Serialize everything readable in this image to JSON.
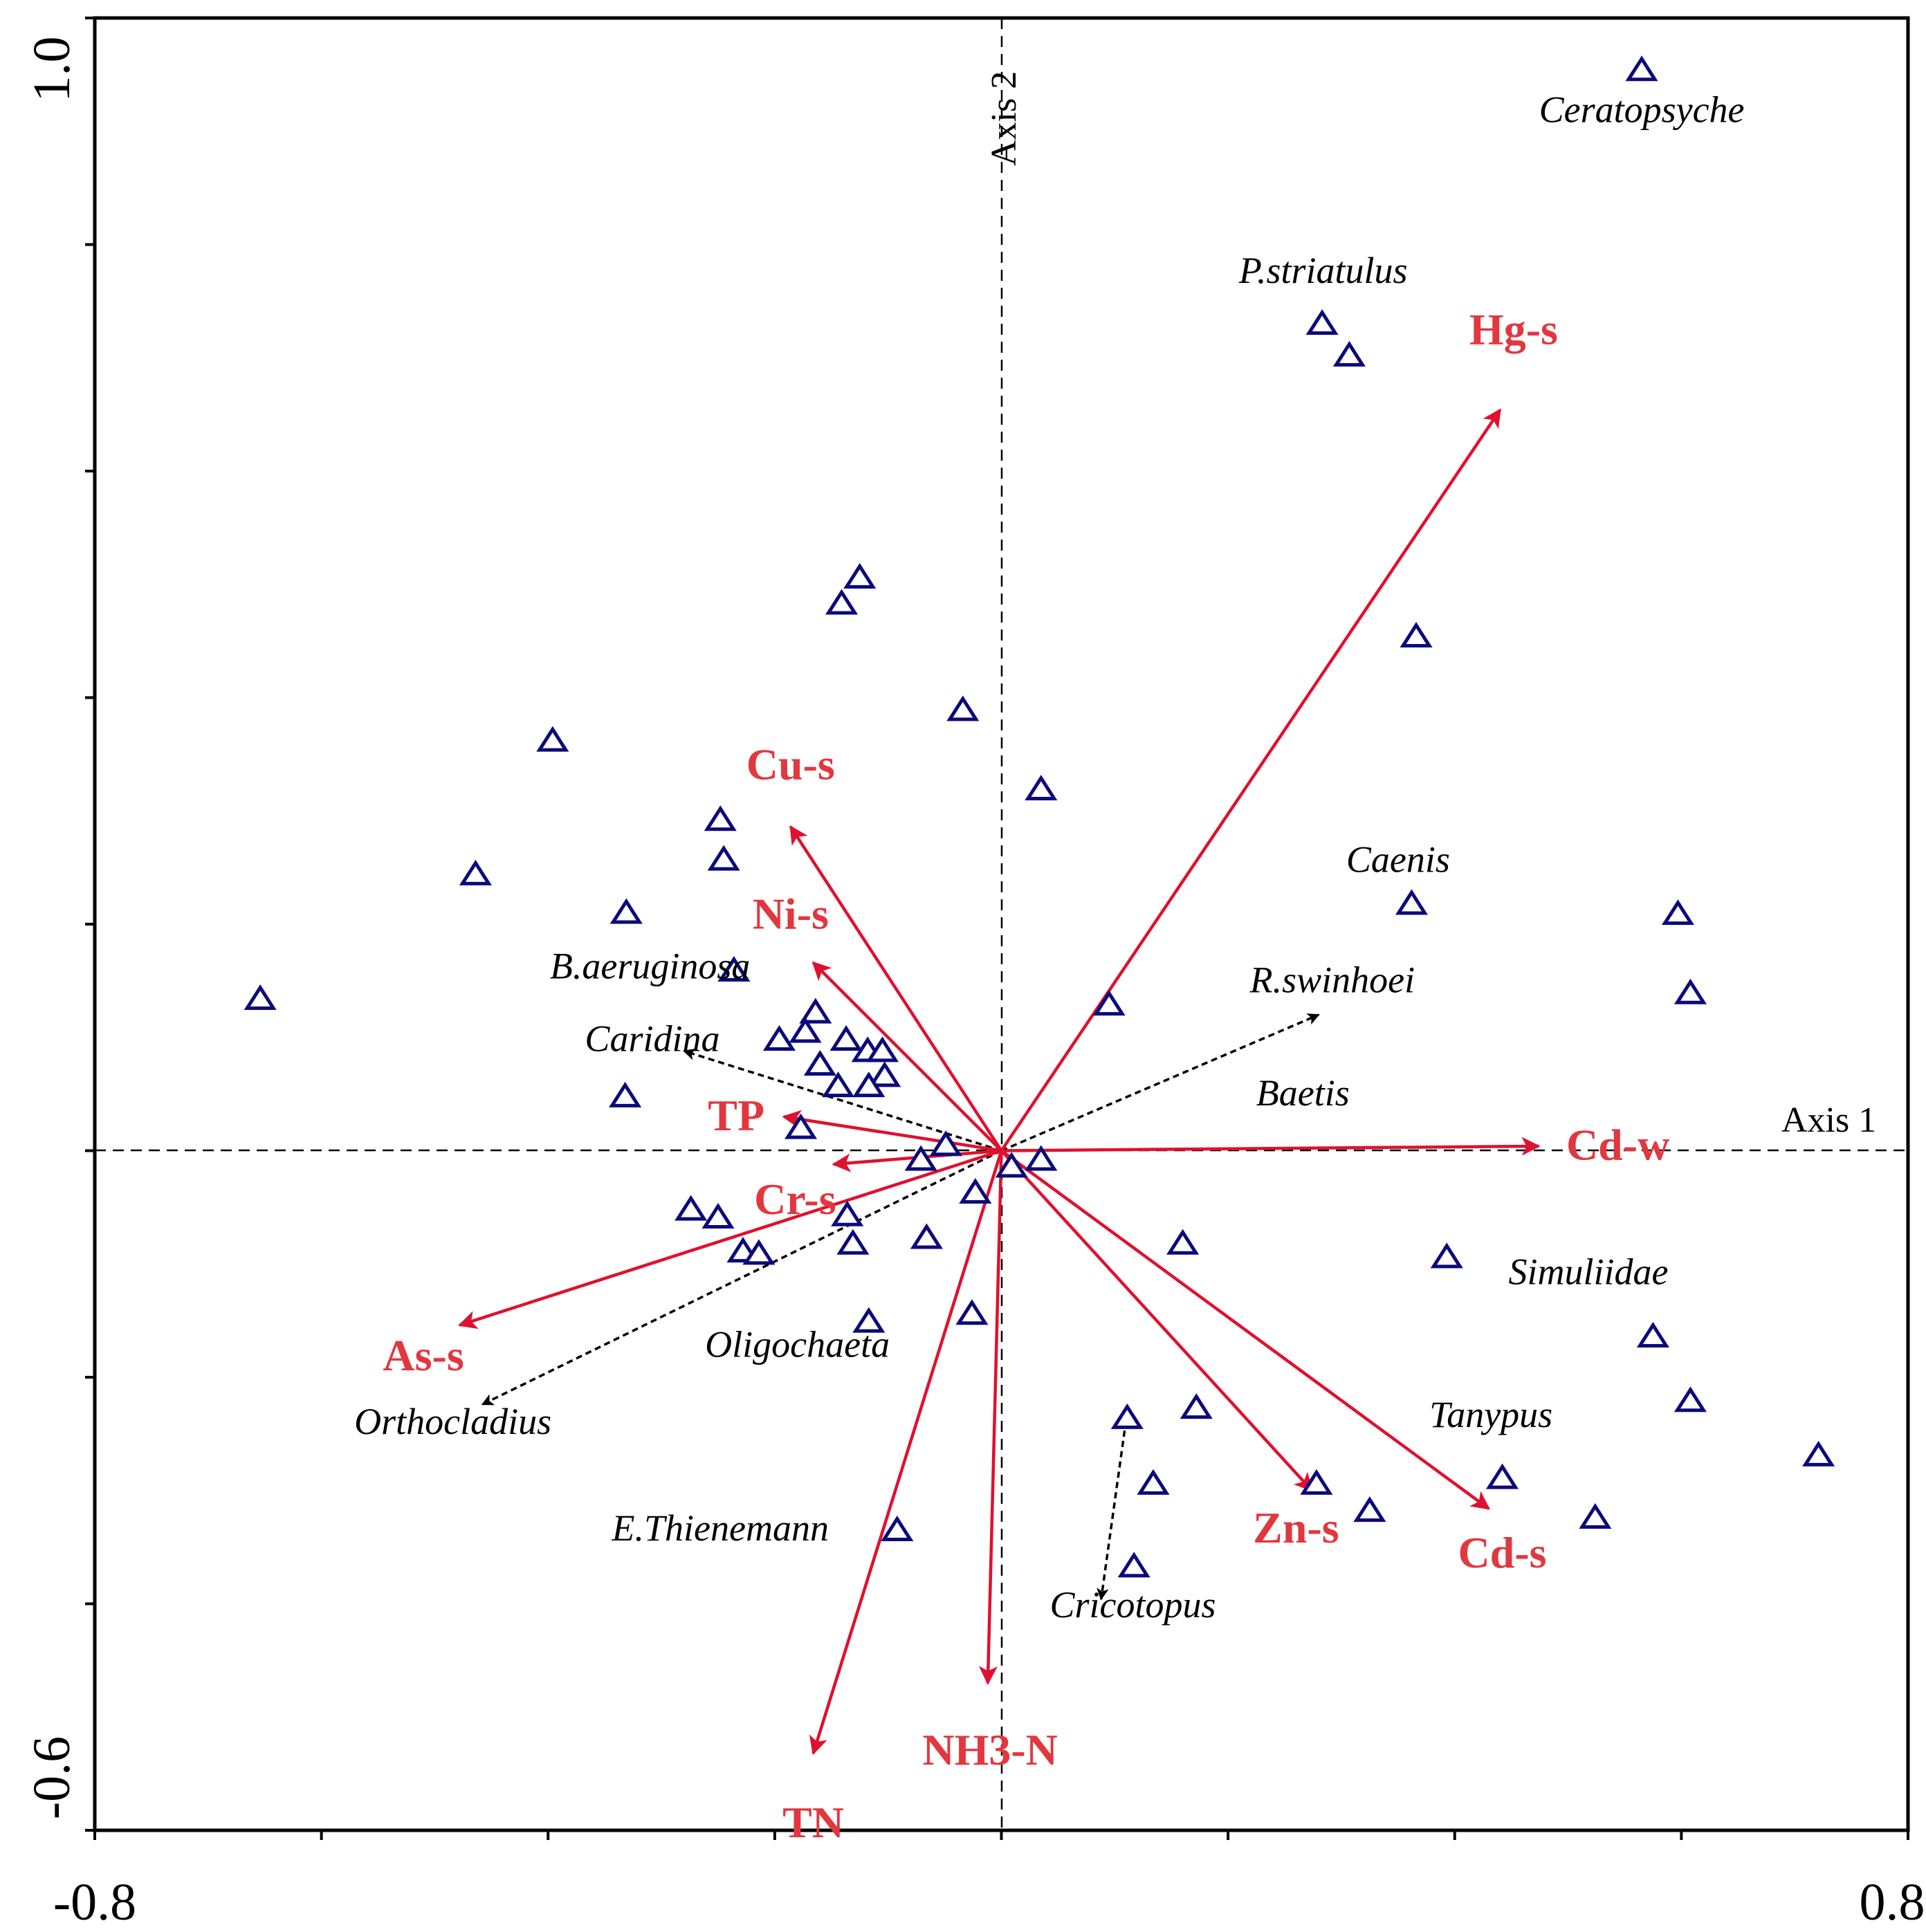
{
  "chart_data": {
    "type": "scatter",
    "subtype": "ordination-biplot",
    "xlim": [
      -0.8,
      0.8
    ],
    "ylim": [
      -0.6,
      1.0
    ],
    "x_tick_labels": [
      "-0.8",
      "0.8"
    ],
    "y_tick_labels": [
      "1.0",
      "-0.6"
    ],
    "axis1_label": "Axis 1",
    "axis2_label": "Axis 2",
    "colors": {
      "environment": "#e2373f",
      "environment_arrow": "#e0102f",
      "sites": "#0a0a7a",
      "species": "#000000",
      "frame": "#000000"
    },
    "environment_vectors": [
      {
        "name": "Hg-s",
        "x": 0.44,
        "y": 0.654
      },
      {
        "name": "Cu-s",
        "x": -0.186,
        "y": 0.286
      },
      {
        "name": "Ni-s",
        "x": -0.166,
        "y": 0.166
      },
      {
        "name": "TP",
        "x": -0.192,
        "y": 0.03
      },
      {
        "name": "Cr-s",
        "x": -0.148,
        "y": -0.012
      },
      {
        "name": "As-s",
        "x": -0.478,
        "y": -0.154
      },
      {
        "name": "TN",
        "x": -0.166,
        "y": -0.532
      },
      {
        "name": "NH3-N",
        "x": -0.012,
        "y": -0.47
      },
      {
        "name": "Zn-s",
        "x": 0.274,
        "y": -0.3
      },
      {
        "name": "Cd-s",
        "x": 0.43,
        "y": -0.316
      },
      {
        "name": "Cd-w",
        "x": 0.474,
        "y": 0.004
      }
    ],
    "species_vectors": [
      {
        "name": "R.swinhoei",
        "x": 0.28,
        "y": 0.12
      },
      {
        "name": "Caridina",
        "x": -0.28,
        "y": 0.088
      },
      {
        "name": "Orthocladius",
        "x": -0.458,
        "y": -0.224
      },
      {
        "name": "Cricotopus",
        "x": 0.088,
        "y": -0.396
      }
    ],
    "species_vector_start": {
      "x": 0.0,
      "y": 0.0
    },
    "cricotopus_vector_start": {
      "x": 0.11,
      "y": -0.238
    },
    "species_labels": [
      {
        "name": "Ceratopsyche",
        "x": 0.565,
        "y": 0.908
      },
      {
        "name": "P.striatulus",
        "x": 0.284,
        "y": 0.766
      },
      {
        "name": "Caenis",
        "x": 0.35,
        "y": 0.246
      },
      {
        "name": "B.aeruginosa",
        "x": -0.31,
        "y": 0.152
      },
      {
        "name": "R.swinhoei",
        "x": 0.292,
        "y": 0.14
      },
      {
        "name": "Caridina",
        "x": -0.308,
        "y": 0.088
      },
      {
        "name": "Baetis",
        "x": 0.266,
        "y": 0.04
      },
      {
        "name": "Simuliidae",
        "x": 0.518,
        "y": -0.118
      },
      {
        "name": "Oligochaeta",
        "x": -0.18,
        "y": -0.182
      },
      {
        "name": "Orthocladius",
        "x": -0.484,
        "y": -0.25
      },
      {
        "name": "Tanypus",
        "x": 0.432,
        "y": -0.244
      },
      {
        "name": "E.Thienemann",
        "x": -0.248,
        "y": -0.344
      },
      {
        "name": "Cricotopus",
        "x": 0.116,
        "y": -0.412
      }
    ],
    "sites": [
      [
        0.565,
        0.953
      ],
      [
        0.283,
        0.729
      ],
      [
        0.307,
        0.701
      ],
      [
        0.366,
        0.453
      ],
      [
        -0.125,
        0.505
      ],
      [
        -0.141,
        0.482
      ],
      [
        -0.034,
        0.388
      ],
      [
        -0.396,
        0.361
      ],
      [
        0.035,
        0.318
      ],
      [
        -0.248,
        0.291
      ],
      [
        -0.245,
        0.256
      ],
      [
        -0.464,
        0.243
      ],
      [
        -0.331,
        0.209
      ],
      [
        0.362,
        0.217
      ],
      [
        0.597,
        0.208
      ],
      [
        -0.654,
        0.133
      ],
      [
        -0.236,
        0.158
      ],
      [
        0.608,
        0.138
      ],
      [
        0.095,
        0.128
      ],
      [
        -0.164,
        0.121
      ],
      [
        -0.196,
        0.097
      ],
      [
        -0.173,
        0.104
      ],
      [
        -0.137,
        0.097
      ],
      [
        -0.118,
        0.087
      ],
      [
        -0.105,
        0.087
      ],
      [
        -0.16,
        0.075
      ],
      [
        -0.103,
        0.065
      ],
      [
        -0.144,
        0.056
      ],
      [
        -0.117,
        0.056
      ],
      [
        -0.332,
        0.047
      ],
      [
        -0.177,
        0.019
      ],
      [
        -0.049,
        0.004
      ],
      [
        -0.071,
        -0.009
      ],
      [
        0.035,
        -0.009
      ],
      [
        0.009,
        -0.015
      ],
      [
        -0.023,
        -0.038
      ],
      [
        -0.274,
        -0.053
      ],
      [
        -0.25,
        -0.06
      ],
      [
        -0.136,
        -0.058
      ],
      [
        -0.066,
        -0.078
      ],
      [
        -0.131,
        -0.083
      ],
      [
        -0.228,
        -0.09
      ],
      [
        -0.214,
        -0.092
      ],
      [
        0.16,
        -0.083
      ],
      [
        0.393,
        -0.095
      ],
      [
        -0.117,
        -0.152
      ],
      [
        -0.026,
        -0.145
      ],
      [
        0.575,
        -0.165
      ],
      [
        0.172,
        -0.228
      ],
      [
        0.608,
        -0.222
      ],
      [
        0.111,
        -0.237
      ],
      [
        0.721,
        -0.27
      ],
      [
        0.442,
        -0.29
      ],
      [
        0.134,
        -0.295
      ],
      [
        0.278,
        -0.295
      ],
      [
        0.325,
        -0.319
      ],
      [
        0.524,
        -0.325
      ],
      [
        -0.092,
        -0.336
      ],
      [
        0.117,
        -0.368
      ]
    ]
  }
}
